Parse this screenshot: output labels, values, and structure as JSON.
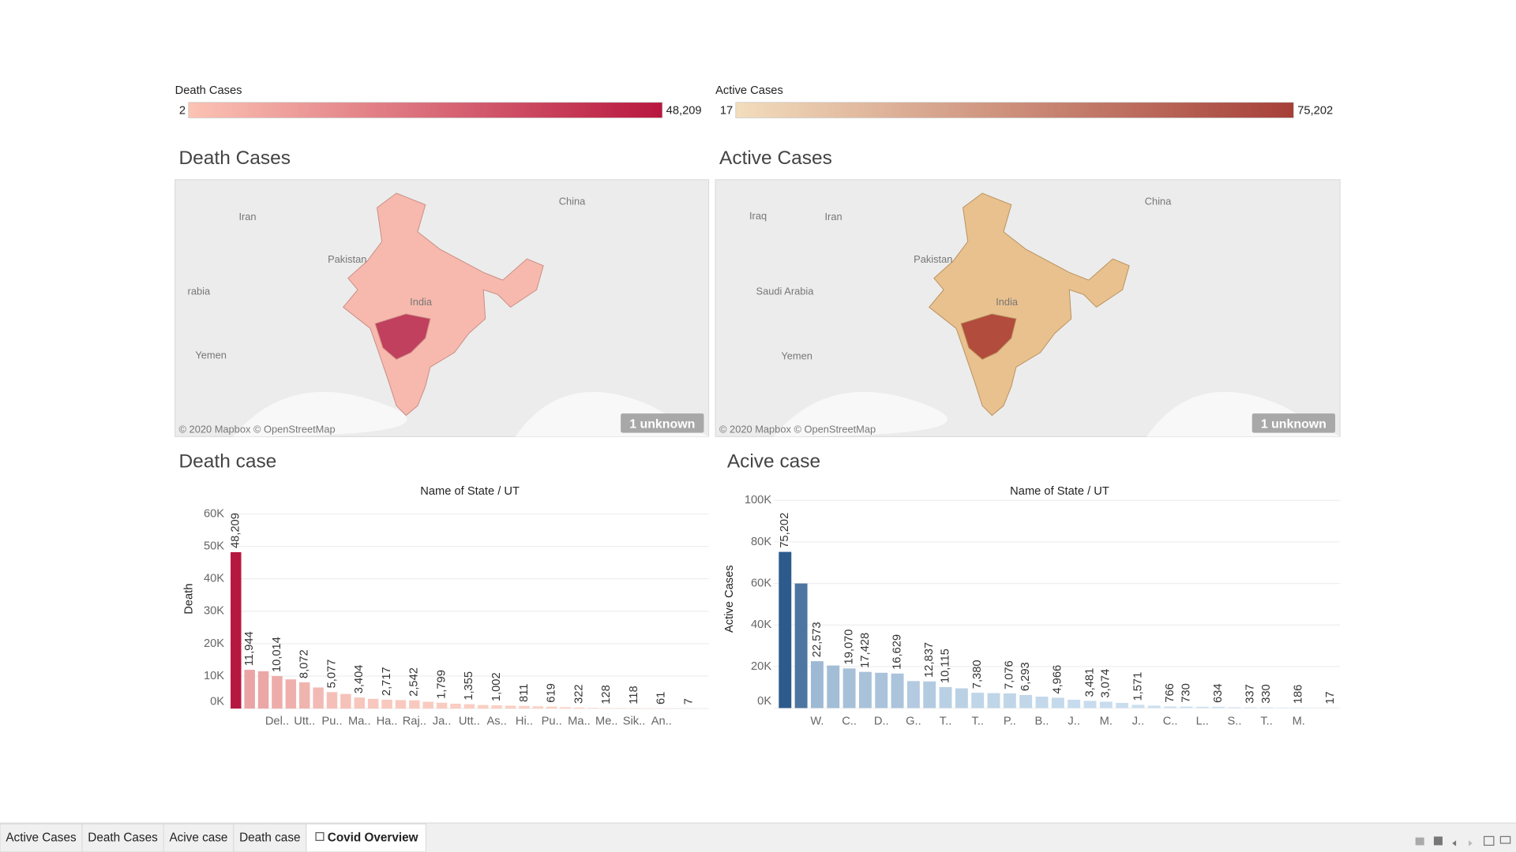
{
  "legends": [
    {
      "title": "Death Cases",
      "range": [
        2,
        {
          "value": 48209,
          "label": "48,209"
        }
      ],
      "colors": [
        "#fcc3b4",
        "#b8173f"
      ]
    },
    {
      "title": "Active Cases",
      "range": [
        17,
        {
          "value": 75202,
          "label": "75,202"
        }
      ],
      "colors": [
        "#f2ddbc",
        "#a63f38"
      ]
    }
  ],
  "maps": [
    {
      "title": "Death Cases",
      "places": [
        "Iran",
        "China",
        "Pakistan",
        "rabia",
        "Yemen",
        "India"
      ],
      "attribution": "© 2020 Mapbox © OpenStreetMap",
      "badge": "1 unknown"
    },
    {
      "title": "Active Cases",
      "places": [
        "Iraq",
        "Iran",
        "China",
        "Pakistan",
        "Saudi Arabia",
        "Yemen",
        "India"
      ],
      "attribution": "© 2020 Mapbox © OpenStreetMap",
      "badge": "1 unknown"
    }
  ],
  "chart_data": [
    {
      "type": "bar",
      "title": "Death case",
      "header": "Name of State / UT",
      "y_label": "Death",
      "categories": [
        null,
        null,
        null,
        "Del..",
        null,
        "Utt..",
        null,
        "Pu..",
        null,
        "Ma..",
        null,
        "Ha..",
        null,
        "Raj..",
        null,
        "Ja..",
        null,
        "Utt..",
        null,
        "As..",
        null,
        "Hi..",
        null,
        "Pu..",
        null,
        "Ma..",
        null,
        "Me..",
        null,
        "Sik..",
        null,
        "An..",
        null,
        null
      ],
      "values": [
        48209,
        11944,
        11500,
        10014,
        9000,
        8072,
        6500,
        5077,
        4500,
        3404,
        3000,
        2717,
        2600,
        2542,
        2100,
        1799,
        1500,
        1355,
        1100,
        1002,
        900,
        811,
        700,
        619,
        450,
        322,
        200,
        128,
        125,
        118,
        90,
        61,
        30,
        7
      ],
      "value_labels": [
        "48,209",
        "11,944",
        null,
        "10,014",
        null,
        "8,072",
        null,
        "5,077",
        null,
        "3,404",
        null,
        "2,717",
        null,
        "2,542",
        null,
        "1,799",
        null,
        "1,355",
        null,
        "1,002",
        null,
        "811",
        null,
        "619",
        null,
        "322",
        null,
        "128",
        null,
        "118",
        null,
        "61",
        null,
        "7"
      ],
      "ylim": [
        0,
        60000
      ],
      "yticks": [
        {
          "value": 0,
          "label": "0K"
        },
        {
          "value": 10000,
          "label": "10K"
        },
        {
          "value": 20000,
          "label": "20K"
        },
        {
          "value": 30000,
          "label": "30K"
        },
        {
          "value": 40000,
          "label": "40K"
        },
        {
          "value": 50000,
          "label": "50K"
        },
        {
          "value": 60000,
          "label": "60K"
        }
      ],
      "grid": true,
      "color_range": [
        "#fcd3c6",
        "#b5173f"
      ]
    },
    {
      "type": "bar",
      "title": "Acive case",
      "header": "Name of State / UT",
      "y_label": "Active Cases",
      "categories": [
        null,
        null,
        "W.",
        null,
        "C..",
        null,
        "D..",
        null,
        "G..",
        null,
        "T..",
        null,
        "T..",
        null,
        "P..",
        null,
        "B..",
        null,
        "J..",
        null,
        "M.",
        null,
        "J..",
        null,
        "C..",
        null,
        "L..",
        null,
        "S..",
        null,
        "T..",
        null,
        "M.",
        null,
        null
      ],
      "values": [
        75202,
        60000,
        22573,
        20500,
        19070,
        17428,
        17000,
        16629,
        13000,
        12837,
        10115,
        9500,
        7380,
        7200,
        7076,
        6293,
        5500,
        4966,
        4000,
        3481,
        3074,
        2500,
        1571,
        1200,
        766,
        730,
        650,
        634,
        400,
        337,
        330,
        200,
        186,
        50,
        17
      ],
      "value_labels": [
        "75,202",
        null,
        "22,573",
        null,
        "19,070",
        "17,428",
        null,
        "16,629",
        null,
        "12,837",
        "10,115",
        null,
        "7,380",
        null,
        "7,076",
        "6,293",
        null,
        "4,966",
        null,
        "3,481",
        "3,074",
        null,
        "1,571",
        null,
        "766",
        "730",
        null,
        "634",
        null,
        "337",
        "330",
        null,
        "186",
        null,
        "17"
      ],
      "ylim": [
        0,
        100000
      ],
      "yticks": [
        {
          "value": 0,
          "label": "0K"
        },
        {
          "value": 20000,
          "label": "20K"
        },
        {
          "value": 40000,
          "label": "40K"
        },
        {
          "value": 60000,
          "label": "60K"
        },
        {
          "value": 80000,
          "label": "80K"
        },
        {
          "value": 100000,
          "label": "100K"
        }
      ],
      "grid": true,
      "color_range": [
        "#cfe2f2",
        "#2c5a8c"
      ]
    }
  ],
  "tabs": [
    "Active Cases",
    "Death Cases",
    "Acive case",
    "Death case",
    "Covid Overview"
  ],
  "selected_tab": 4
}
